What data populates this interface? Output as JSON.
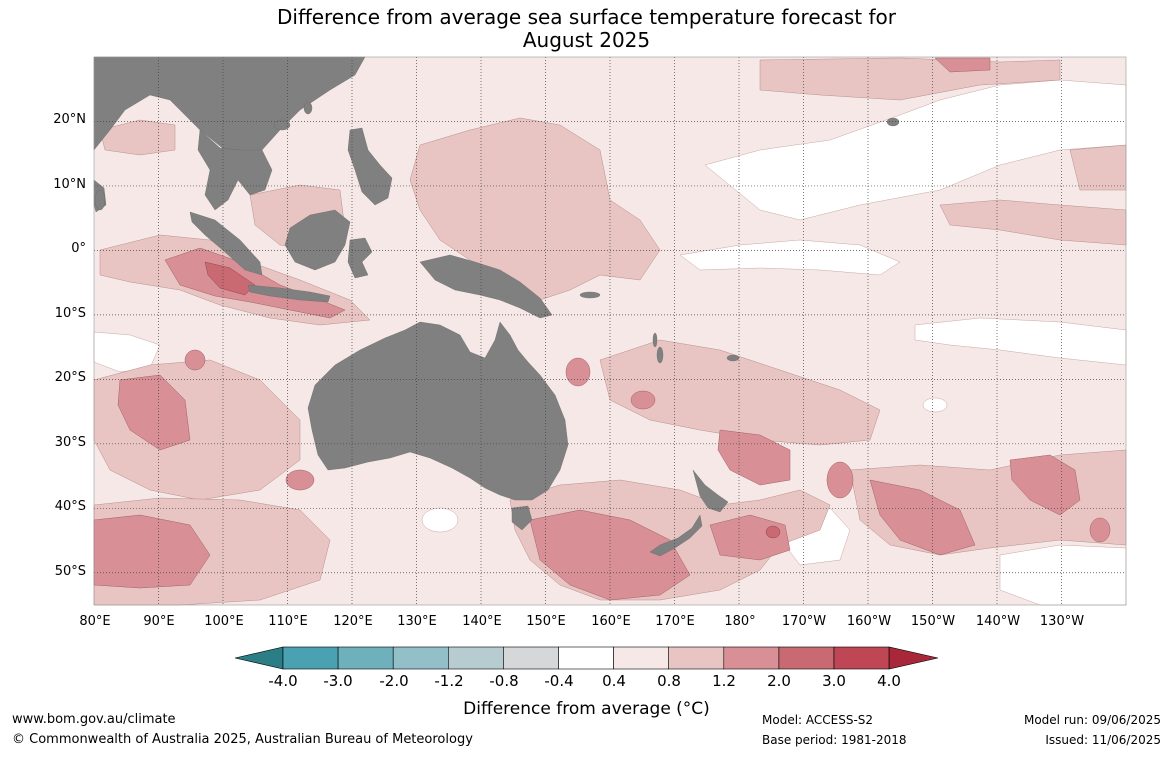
{
  "title": {
    "line1": "Difference from average sea surface temperature forecast for",
    "line2": "August 2025"
  },
  "axes": {
    "lat_labels": [
      "20°N",
      "10°N",
      "0°",
      "10°S",
      "20°S",
      "30°S",
      "40°S",
      "50°S"
    ],
    "lon_labels": [
      "80°E",
      "90°E",
      "100°E",
      "110°E",
      "120°E",
      "130°E",
      "140°E",
      "150°E",
      "160°E",
      "170°E",
      "180°",
      "170°W",
      "160°W",
      "150°W",
      "140°W",
      "130°W"
    ],
    "lat_range": [
      -55,
      30
    ],
    "lon_range": [
      80,
      240
    ]
  },
  "colorbar": {
    "label": "Difference from average (°C)",
    "tick_labels": [
      "-4.0",
      "-3.0",
      "-2.0",
      "-1.2",
      "-0.8",
      "-0.4",
      "0.4",
      "0.8",
      "1.2",
      "2.0",
      "3.0",
      "4.0"
    ],
    "colors": [
      "#2b7d86",
      "#4aa1b1",
      "#6fb0bd",
      "#93c0c8",
      "#b6ccd0",
      "#d5d7d8",
      "#ffffff",
      "#f5e8e6",
      "#e8c5c2",
      "#d89096",
      "#c96a73",
      "#bf4654",
      "#a8283a"
    ]
  },
  "land_color": "#808080",
  "footer": {
    "website": "www.bom.gov.au/climate",
    "copyright": "© Commonwealth of Australia 2025, Australian Bureau of Meteorology",
    "model": "Model: ACCESS-S2",
    "base_period": "Base period: 1981-2018",
    "model_run": "Model run: 09/06/2025",
    "issued": "Issued: 11/06/2025"
  }
}
